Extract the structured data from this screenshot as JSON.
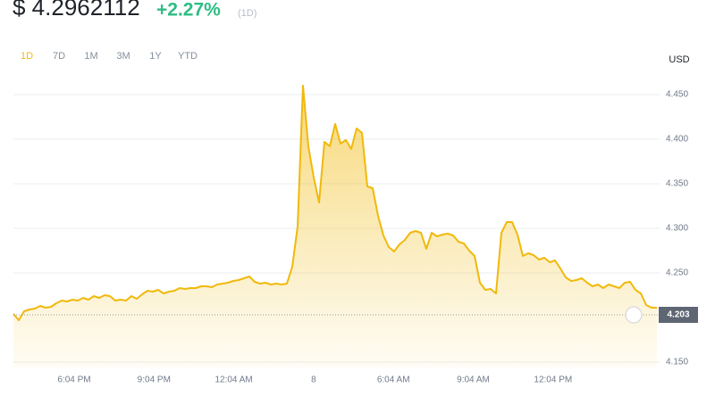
{
  "header": {
    "price": "$ 4.2962112",
    "change": "+2.27%",
    "period": "(1D)"
  },
  "tabs": [
    "1D",
    "7D",
    "1M",
    "3M",
    "1Y",
    "YTD"
  ],
  "chart_data": {
    "type": "area",
    "currency": "USD",
    "color": "#f0b90b",
    "grid": true,
    "values": [
      4.204,
      4.197,
      4.207,
      4.209,
      4.21,
      4.213,
      4.211,
      4.212,
      4.216,
      4.219,
      4.218,
      4.22,
      4.219,
      4.222,
      4.22,
      4.224,
      4.222,
      4.225,
      4.224,
      4.219,
      4.22,
      4.219,
      4.224,
      4.221,
      4.226,
      4.23,
      4.229,
      4.231,
      4.227,
      4.229,
      4.23,
      4.233,
      4.232,
      4.233,
      4.233,
      4.235,
      4.235,
      4.234,
      4.237,
      4.238,
      4.239,
      4.241,
      4.242,
      4.244,
      4.246,
      4.24,
      4.238,
      4.239,
      4.237,
      4.238,
      4.237,
      4.238,
      4.257,
      4.302,
      4.46,
      4.392,
      4.357,
      4.329,
      4.397,
      4.392,
      4.417,
      4.395,
      4.399,
      4.389,
      4.412,
      4.407,
      4.347,
      4.345,
      4.314,
      4.292,
      4.279,
      4.274,
      4.282,
      4.287,
      4.295,
      4.297,
      4.295,
      4.277,
      4.295,
      4.291,
      4.293,
      4.294,
      4.292,
      4.285,
      4.283,
      4.275,
      4.269,
      4.239,
      4.231,
      4.232,
      4.227,
      4.295,
      4.307,
      4.307,
      4.293,
      4.269,
      4.272,
      4.27,
      4.265,
      4.267,
      4.262,
      4.264,
      4.255,
      4.245,
      4.241,
      4.242,
      4.244,
      4.239,
      4.235,
      4.237,
      4.233,
      4.237,
      4.235,
      4.233,
      4.239,
      4.24,
      4.231,
      4.227,
      4.214,
      4.211,
      4.211
    ],
    "ylim": [
      4.144,
      4.467
    ],
    "yticks": [
      {
        "value": 4.15,
        "label": "4.150"
      },
      {
        "value": 4.25,
        "label": "4.250"
      },
      {
        "value": 4.3,
        "label": "4.300"
      },
      {
        "value": 4.35,
        "label": "4.350"
      },
      {
        "value": 4.4,
        "label": "4.400"
      },
      {
        "value": 4.45,
        "label": "4.450"
      }
    ],
    "xtick_labels": [
      "6:04 PM",
      "9:04 PM",
      "12:04 AM",
      "8",
      "6:04 AM",
      "9:04 AM",
      "12:04 PM"
    ],
    "last_price": 4.203
  }
}
